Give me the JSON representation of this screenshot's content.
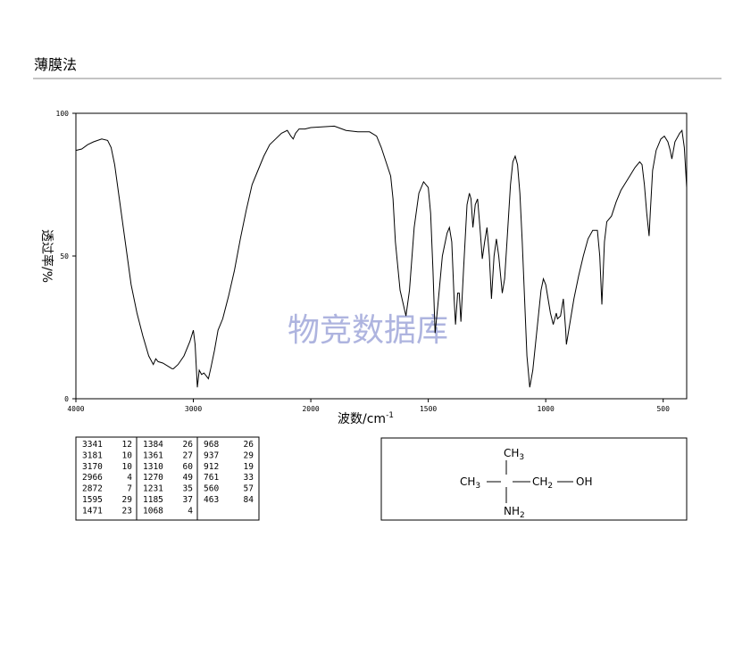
{
  "header": {
    "title": "薄膜法"
  },
  "chart_data": {
    "type": "line",
    "y_label": "透过率/%",
    "x_label": "波数/cm",
    "x_label_sup": "-1",
    "watermark": "物竞数据库",
    "color": "#000000",
    "xlim": [
      4000,
      400
    ],
    "x_scale_break": 2000,
    "xticks": [
      4000,
      3000,
      2000,
      1500,
      1000,
      500
    ],
    "ylim": [
      0,
      100
    ],
    "yticks": [
      0,
      50,
      100
    ],
    "x": [
      4000,
      3950,
      3900,
      3850,
      3780,
      3730,
      3700,
      3670,
      3630,
      3580,
      3530,
      3480,
      3430,
      3380,
      3341,
      3320,
      3300,
      3260,
      3200,
      3181,
      3170,
      3130,
      3080,
      3030,
      3000,
      2985,
      2966,
      2950,
      2930,
      2910,
      2890,
      2872,
      2850,
      2820,
      2790,
      2750,
      2700,
      2650,
      2600,
      2550,
      2500,
      2450,
      2400,
      2350,
      2300,
      2250,
      2200,
      2170,
      2150,
      2130,
      2100,
      2050,
      2000,
      1900,
      1850,
      1800,
      1750,
      1720,
      1700,
      1680,
      1660,
      1650,
      1640,
      1620,
      1595,
      1580,
      1560,
      1540,
      1520,
      1500,
      1490,
      1480,
      1471,
      1460,
      1440,
      1420,
      1410,
      1400,
      1390,
      1384,
      1375,
      1368,
      1361,
      1350,
      1335,
      1325,
      1318,
      1310,
      1300,
      1290,
      1280,
      1270,
      1260,
      1250,
      1240,
      1231,
      1220,
      1210,
      1200,
      1185,
      1175,
      1165,
      1150,
      1140,
      1130,
      1120,
      1110,
      1100,
      1090,
      1080,
      1068,
      1055,
      1040,
      1030,
      1020,
      1010,
      1000,
      990,
      980,
      968,
      955,
      950,
      937,
      925,
      915,
      912,
      900,
      880,
      860,
      840,
      820,
      800,
      780,
      770,
      761,
      750,
      740,
      720,
      700,
      680,
      650,
      620,
      600,
      590,
      580,
      570,
      560,
      555,
      545,
      530,
      510,
      495,
      480,
      470,
      463,
      450,
      430,
      420,
      410,
      400
    ],
    "values": [
      87,
      87.5,
      89,
      90,
      91,
      90.5,
      88,
      82,
      70,
      55,
      40,
      30,
      22,
      15,
      12,
      14,
      13,
      12.5,
      11,
      10.5,
      10.5,
      12,
      15,
      20,
      24,
      19,
      4,
      10,
      8.5,
      9,
      8,
      7,
      11,
      17,
      24,
      28,
      36,
      45,
      56,
      66,
      75,
      80,
      85,
      89,
      91,
      93,
      94,
      92,
      91,
      93,
      94.5,
      94.5,
      95,
      95.5,
      94,
      93.5,
      93.5,
      92,
      88,
      83,
      78,
      70,
      55,
      38,
      29,
      38,
      60,
      72,
      76,
      74,
      65,
      45,
      23,
      32,
      50,
      58,
      60,
      55,
      35,
      26,
      37,
      37,
      27,
      45,
      68,
      72,
      70,
      60,
      68,
      70,
      60,
      49,
      55,
      60,
      50,
      35,
      50,
      56,
      50,
      37,
      42,
      55,
      75,
      83,
      85,
      82,
      72,
      55,
      35,
      15,
      4,
      10,
      22,
      30,
      38,
      42,
      40,
      35,
      30,
      26,
      30,
      28,
      29,
      35,
      24,
      19,
      25,
      35,
      43,
      50,
      56,
      59,
      59,
      50,
      33,
      55,
      62,
      64,
      69,
      73,
      77,
      81,
      83,
      82,
      75,
      65,
      57,
      65,
      80,
      87,
      91,
      92,
      90,
      87,
      84,
      90,
      93,
      94,
      88,
      74
    ]
  },
  "table": {
    "rows": [
      [
        "3341",
        "12",
        "1384",
        "26",
        "968",
        "26"
      ],
      [
        "3181",
        "10",
        "1361",
        "27",
        "937",
        "29"
      ],
      [
        "3170",
        "10",
        "1310",
        "60",
        "912",
        "19"
      ],
      [
        "2966",
        "4",
        "1270",
        "49",
        "761",
        "33"
      ],
      [
        "2872",
        "7",
        "1231",
        "35",
        "560",
        "57"
      ],
      [
        "1595",
        "29",
        "1185",
        "37",
        "463",
        "84"
      ],
      [
        "1471",
        "23",
        "1068",
        "4",
        "",
        ""
      ]
    ]
  },
  "structure": {
    "nodes": [
      {
        "label": "CH",
        "sub": "3"
      },
      {
        "label": "CH",
        "sub": "3"
      },
      {
        "label": "C",
        "sub": ""
      },
      {
        "label": "CH",
        "sub": "2"
      },
      {
        "label": "OH",
        "sub": ""
      },
      {
        "label": "NH",
        "sub": "2"
      }
    ]
  }
}
